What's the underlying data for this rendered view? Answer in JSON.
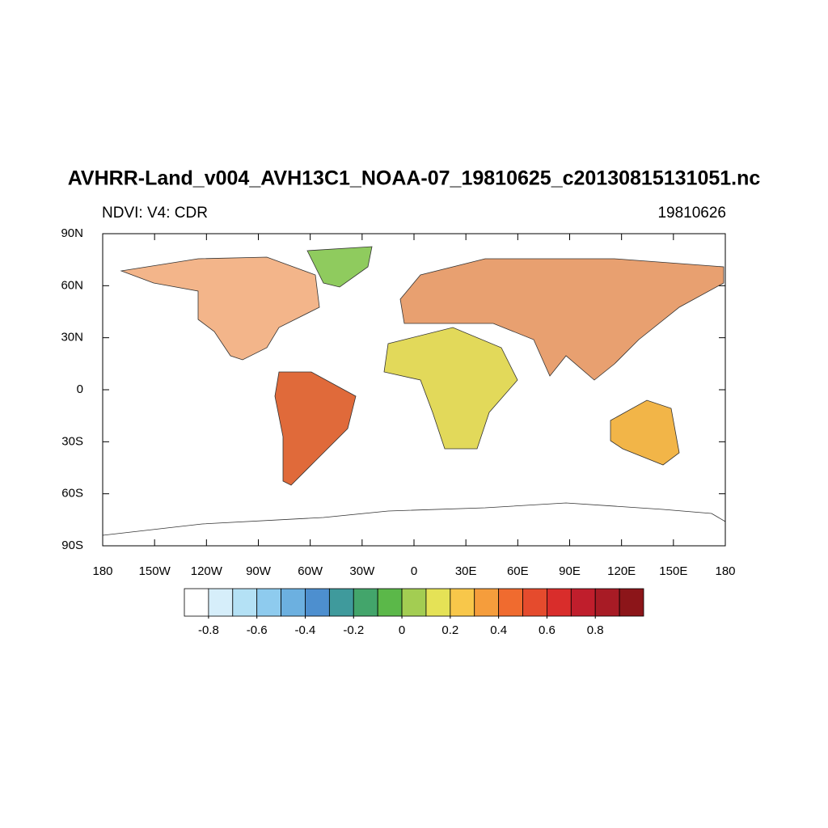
{
  "title": "AVHRR-Land_v004_AVH13C1_NOAA-07_19810625_c20130815131051.nc",
  "subtitle_left": "NDVI: V4: CDR",
  "subtitle_right": "19810626",
  "map": {
    "xlim": [
      -180,
      180
    ],
    "ylim": [
      -90,
      90
    ],
    "xticks": [
      {
        "value": -180,
        "label": "180"
      },
      {
        "value": -150,
        "label": "150W"
      },
      {
        "value": -120,
        "label": "120W"
      },
      {
        "value": -90,
        "label": "90W"
      },
      {
        "value": -60,
        "label": "60W"
      },
      {
        "value": -30,
        "label": "30W"
      },
      0,
      {
        "value": 30,
        "label": "30E"
      },
      {
        "value": 60,
        "label": "60E"
      },
      {
        "value": 90,
        "label": "90E"
      },
      {
        "value": 120,
        "label": "120E"
      },
      {
        "value": 150,
        "label": "150E"
      },
      {
        "value": 180,
        "label": "180"
      }
    ],
    "yticks": [
      {
        "value": 90,
        "label": "90N"
      },
      {
        "value": 60,
        "label": "60N"
      },
      {
        "value": 30,
        "label": "30N"
      },
      0,
      {
        "value": -30,
        "label": "30S"
      },
      {
        "value": -60,
        "label": "60S"
      },
      {
        "value": -90,
        "label": "90S"
      }
    ]
  },
  "colorbar": {
    "lim": [
      -0.9,
      1.0
    ],
    "colors": [
      "#ffffff",
      "#d6eefa",
      "#b4e1f5",
      "#8ecbee",
      "#6cb0e0",
      "#4d8fcf",
      "#3f9a9c",
      "#43a56b",
      "#5bb849",
      "#a3cd52",
      "#e5e256",
      "#f8c74a",
      "#f59d3c",
      "#f06b2f",
      "#e54b2d",
      "#d92d2b",
      "#c01e2c",
      "#a81b25",
      "#8c1519"
    ],
    "ticks": [
      -0.8,
      -0.6,
      -0.4,
      -0.2,
      0,
      0.2,
      0.4,
      0.6,
      0.8
    ]
  }
}
